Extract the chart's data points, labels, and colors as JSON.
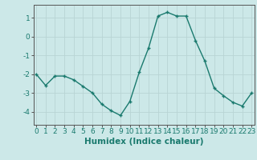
{
  "x": [
    0,
    1,
    2,
    3,
    4,
    5,
    6,
    7,
    8,
    9,
    10,
    11,
    12,
    13,
    14,
    15,
    16,
    17,
    18,
    19,
    20,
    21,
    22,
    23
  ],
  "y": [
    -2.0,
    -2.6,
    -2.1,
    -2.1,
    -2.3,
    -2.65,
    -3.0,
    -3.6,
    -3.95,
    -4.2,
    -3.45,
    -1.9,
    -0.6,
    1.1,
    1.3,
    1.1,
    1.1,
    -0.2,
    -1.3,
    -2.75,
    -3.15,
    -3.5,
    -3.7,
    -3.0
  ],
  "xlabel": "Humidex (Indice chaleur)",
  "ylim": [
    -4.7,
    1.7
  ],
  "xlim": [
    -0.3,
    23.3
  ],
  "yticks": [
    -4,
    -3,
    -2,
    -1,
    0,
    1
  ],
  "xticks": [
    0,
    1,
    2,
    3,
    4,
    5,
    6,
    7,
    8,
    9,
    10,
    11,
    12,
    13,
    14,
    15,
    16,
    17,
    18,
    19,
    20,
    21,
    22,
    23
  ],
  "line_color": "#1a7a6e",
  "marker": "+",
  "marker_size": 3.5,
  "marker_linewidth": 1.0,
  "line_width": 1.0,
  "bg_color": "#cce8e8",
  "grid_color": "#b8d4d4",
  "axis_color": "#555555",
  "label_color": "#1a7a6e",
  "tick_color": "#1a7a6e",
  "xlabel_fontsize": 7.5,
  "tick_fontsize": 6.5
}
